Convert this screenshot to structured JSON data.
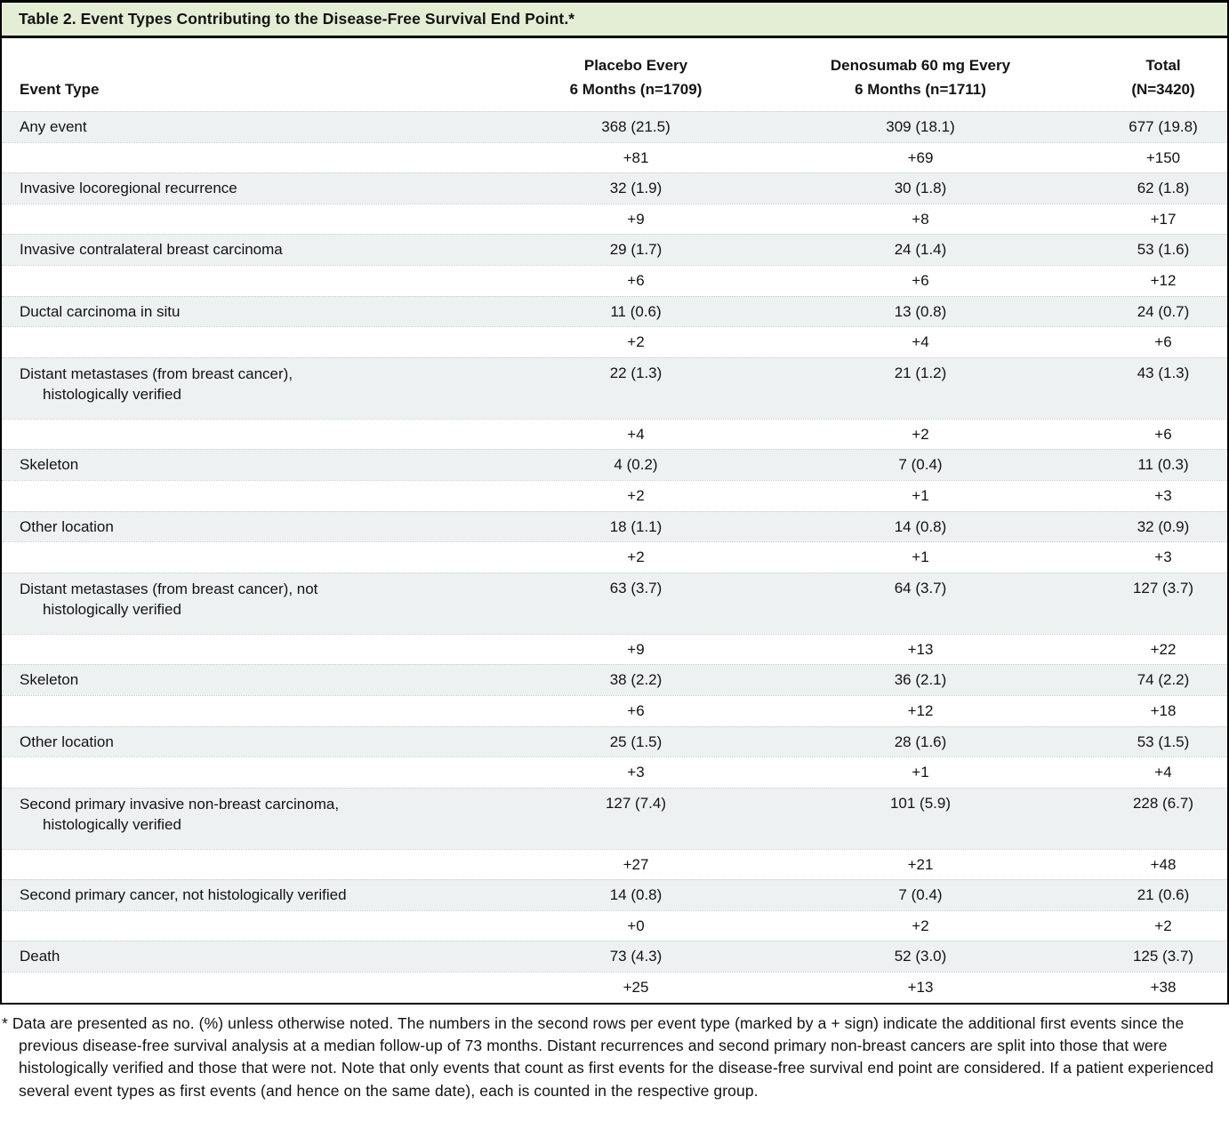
{
  "title": "Table 2. Event Types Contributing to the Disease-Free Survival End Point.*",
  "columns": {
    "event_type": "Event Type",
    "placebo_line1": "Placebo Every",
    "placebo_line2": "6 Months (n=1709)",
    "denosumab_line1": "Denosumab 60 mg Every",
    "denosumab_line2": "6 Months (n=1711)",
    "total_line1": "Total",
    "total_line2": "(N=3420)"
  },
  "rows": [
    {
      "label": "Any event",
      "label2": "",
      "counts": [
        "368 (21.5)",
        "309 (18.1)",
        "677 (19.8)"
      ],
      "added": [
        "+81",
        "+69",
        "+150"
      ]
    },
    {
      "label": "Invasive locoregional recurrence",
      "label2": "",
      "counts": [
        "32 (1.9)",
        "30 (1.8)",
        "62 (1.8)"
      ],
      "added": [
        "+9",
        "+8",
        "+17"
      ]
    },
    {
      "label": "Invasive contralateral breast carcinoma",
      "label2": "",
      "counts": [
        "29 (1.7)",
        "24 (1.4)",
        "53 (1.6)"
      ],
      "added": [
        "+6",
        "+6",
        "+12"
      ]
    },
    {
      "label": "Ductal carcinoma in situ",
      "label2": "",
      "counts": [
        "11 (0.6)",
        "13 (0.8)",
        "24 (0.7)"
      ],
      "added": [
        "+2",
        "+4",
        "+6"
      ]
    },
    {
      "label": "Distant metastases (from breast cancer),",
      "label2": "histologically verified",
      "counts": [
        "22 (1.3)",
        "21 (1.2)",
        "43 (1.3)"
      ],
      "added": [
        "+4",
        "+2",
        "+6"
      ]
    },
    {
      "label": "Skeleton",
      "label2": "",
      "counts": [
        "4 (0.2)",
        "7 (0.4)",
        "11 (0.3)"
      ],
      "added": [
        "+2",
        "+1",
        "+3"
      ]
    },
    {
      "label": "Other location",
      "label2": "",
      "counts": [
        "18 (1.1)",
        "14 (0.8)",
        "32 (0.9)"
      ],
      "added": [
        "+2",
        "+1",
        "+3"
      ]
    },
    {
      "label": "Distant metastases (from breast cancer), not",
      "label2": "histologically verified",
      "counts": [
        "63 (3.7)",
        "64 (3.7)",
        "127 (3.7)"
      ],
      "added": [
        "+9",
        "+13",
        "+22"
      ]
    },
    {
      "label": "Skeleton",
      "label2": "",
      "counts": [
        "38 (2.2)",
        "36 (2.1)",
        "74 (2.2)"
      ],
      "added": [
        "+6",
        "+12",
        "+18"
      ]
    },
    {
      "label": "Other location",
      "label2": "",
      "counts": [
        "25 (1.5)",
        "28 (1.6)",
        "53 (1.5)"
      ],
      "added": [
        "+3",
        "+1",
        "+4"
      ]
    },
    {
      "label": "Second primary invasive non-breast carcinoma,",
      "label2": "histologically verified",
      "counts": [
        "127 (7.4)",
        "101 (5.9)",
        "228 (6.7)"
      ],
      "added": [
        "+27",
        "+21",
        "+48"
      ]
    },
    {
      "label": "Second primary cancer, not histologically verified",
      "label2": "",
      "counts": [
        "14 (0.8)",
        "7 (0.4)",
        "21 (0.6)"
      ],
      "added": [
        "+0",
        "+2",
        "+2"
      ]
    },
    {
      "label": "Death",
      "label2": "",
      "counts": [
        "73 (4.3)",
        "52 (3.0)",
        "125 (3.7)"
      ],
      "added": [
        "+25",
        "+13",
        "+38"
      ]
    }
  ],
  "footnote": "* Data are presented as no. (%) unless otherwise noted. The numbers in the second rows per event type (marked by a + sign) indicate the additional first events since the previous disease-free survival analysis at a median follow-up of 73 months. Distant recurrences and second primary non-breast cancers are split into those that were histologically verified and those that were not. Note that only events that count as first events for the disease-free survival end point are considered. If a patient experienced several event types as first events (and hence on the same date), each is counted in the respective group.",
  "colors": {
    "title_bg": "#e4eed4",
    "row_shade": "#eef1f2",
    "border": "#000000",
    "text": "#131313"
  }
}
